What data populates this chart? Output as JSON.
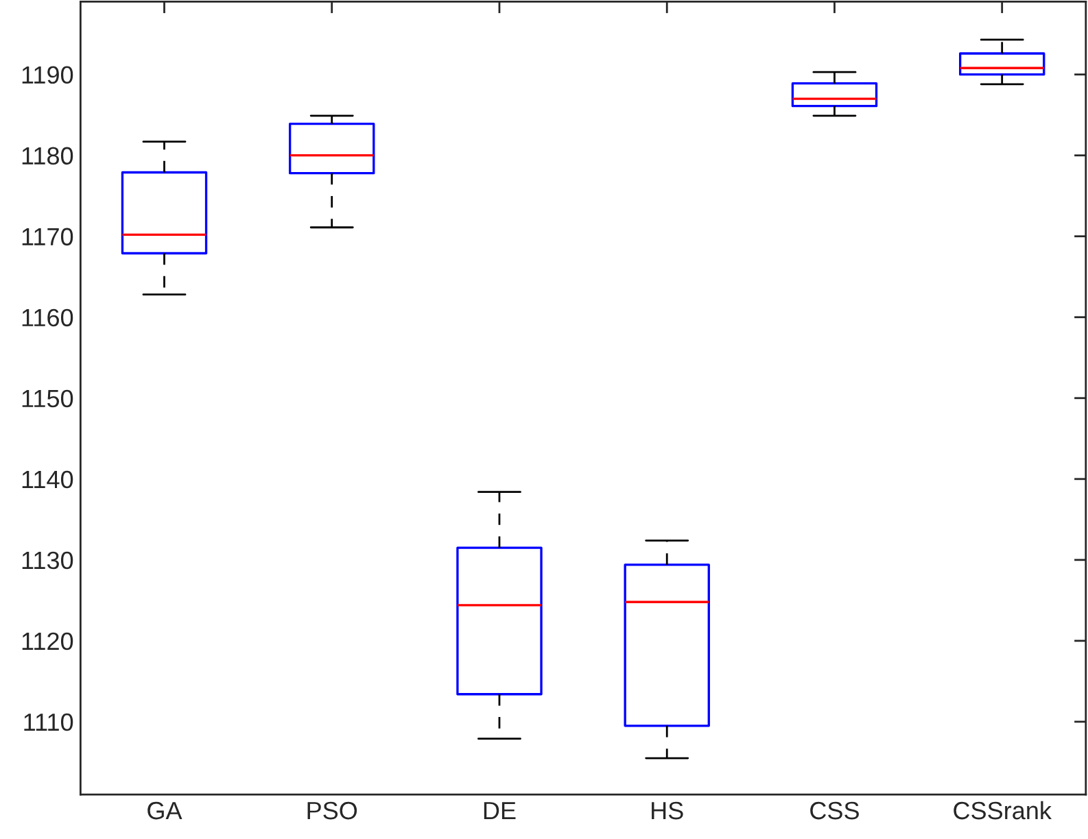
{
  "chart_data": {
    "type": "box",
    "categories": [
      "GA",
      "PSO",
      "DE",
      "HS",
      "CSS",
      "CSSrank"
    ],
    "series": [
      {
        "color": "#0000ff",
        "boxes": [
          {
            "low": 1162.8,
            "q1": 1167.9,
            "median": 1170.2,
            "q3": 1177.9,
            "high": 1181.7
          },
          {
            "low": 1171.1,
            "q1": 1177.8,
            "median": 1180.0,
            "q3": 1183.9,
            "high": 1184.9
          },
          {
            "low": 1107.9,
            "q1": 1113.4,
            "median": 1124.4,
            "q3": 1131.5,
            "high": 1138.4
          },
          {
            "low": 1105.5,
            "q1": 1109.5,
            "median": 1124.8,
            "q3": 1129.4,
            "high": 1132.4
          },
          {
            "low": 1184.9,
            "q1": 1186.1,
            "median": 1187.0,
            "q3": 1188.9,
            "high": 1190.3
          },
          {
            "low": 1188.8,
            "q1": 1190.0,
            "median": 1190.8,
            "q3": 1192.6,
            "high": 1194.3
          }
        ]
      }
    ],
    "ylim": [
      1101,
      1199
    ],
    "yticks": [
      1110,
      1120,
      1130,
      1140,
      1150,
      1160,
      1170,
      1180,
      1190
    ],
    "line_style": "dashed",
    "grid": false,
    "legend": false
  }
}
